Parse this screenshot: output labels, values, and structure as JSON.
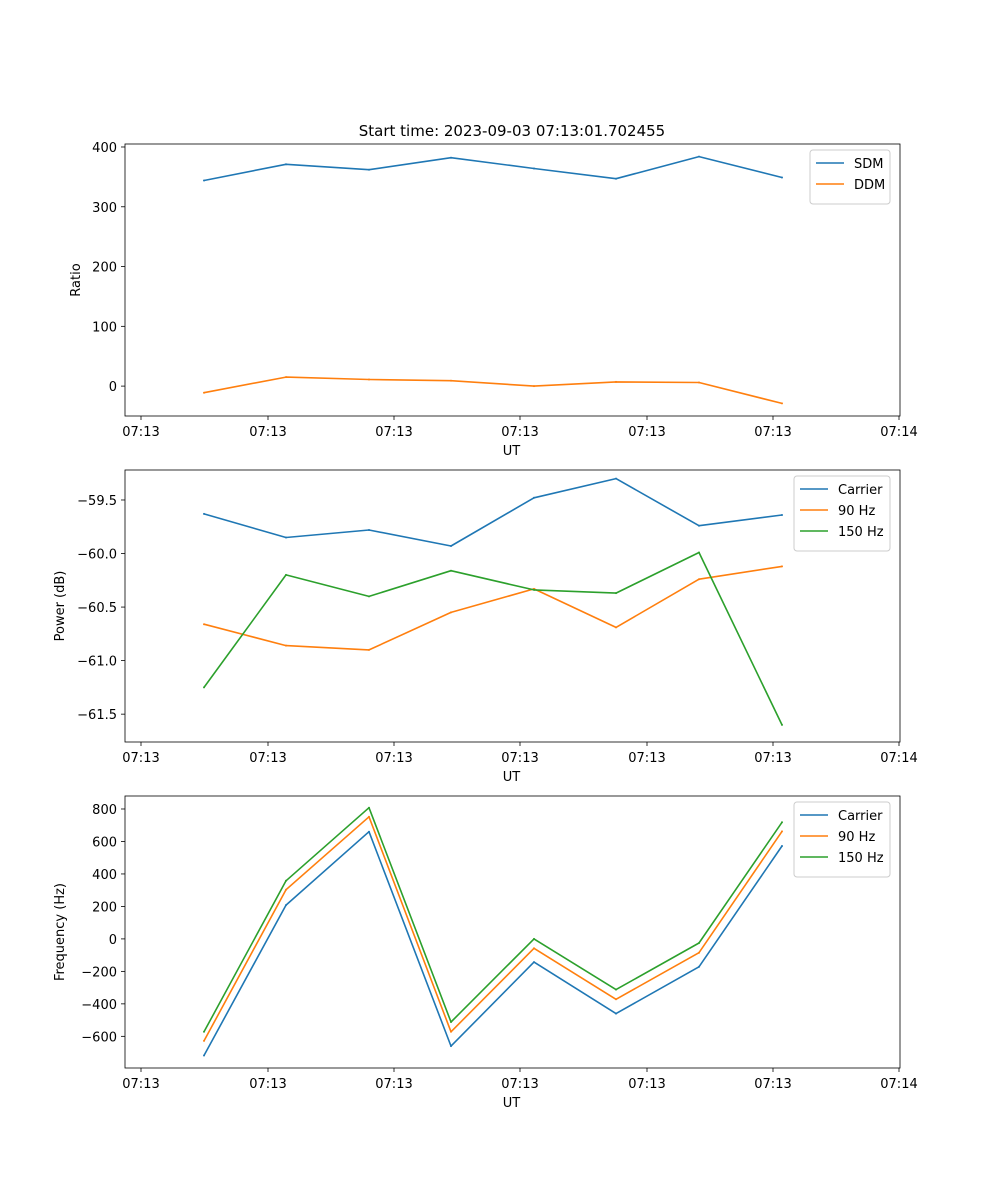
{
  "figure": {
    "title": "Start time: 2023-09-03 07:13:01.702455"
  },
  "chart_data": [
    {
      "type": "line",
      "xlabel": "UT",
      "ylabel": "Ratio",
      "x_tick_labels": [
        "07:13",
        "07:13",
        "07:13",
        "07:13",
        "07:13",
        "07:13",
        "07:14"
      ],
      "y_ticks": [
        0,
        100,
        200,
        300,
        400
      ],
      "y_tick_labels": [
        "0",
        "100",
        "200",
        "300",
        "400"
      ],
      "ylim": [
        -50,
        405
      ],
      "legend_position": "top-right",
      "series": [
        {
          "name": "SDM",
          "color": "#1f77b4",
          "values": [
            344,
            371,
            362,
            382,
            364,
            347,
            384,
            349
          ]
        },
        {
          "name": "DDM",
          "color": "#ff7f0e",
          "values": [
            -11,
            15,
            11,
            9,
            0,
            7,
            6,
            -29
          ]
        }
      ]
    },
    {
      "type": "line",
      "xlabel": "UT",
      "ylabel": "Power (dB)",
      "x_tick_labels": [
        "07:13",
        "07:13",
        "07:13",
        "07:13",
        "07:13",
        "07:13",
        "07:14"
      ],
      "y_ticks": [
        -61.5,
        -61.0,
        -60.5,
        -60.0,
        -59.5
      ],
      "y_tick_labels": [
        "−61.5",
        "−61.0",
        "−60.5",
        "−60.0",
        "−59.5"
      ],
      "ylim": [
        -61.76,
        -59.22
      ],
      "legend_position": "top-right",
      "series": [
        {
          "name": "Carrier",
          "color": "#1f77b4",
          "values": [
            -59.63,
            -59.85,
            -59.78,
            -59.93,
            -59.48,
            -59.3,
            -59.74,
            -59.64
          ]
        },
        {
          "name": "90 Hz",
          "color": "#ff7f0e",
          "values": [
            -60.66,
            -60.86,
            -60.9,
            -60.55,
            -60.33,
            -60.69,
            -60.24,
            -60.12
          ]
        },
        {
          "name": "150 Hz",
          "color": "#2ca02c",
          "values": [
            -61.25,
            -60.2,
            -60.4,
            -60.16,
            -60.34,
            -60.37,
            -59.99,
            -61.6
          ]
        }
      ]
    },
    {
      "type": "line",
      "xlabel": "UT",
      "ylabel": "Frequency (Hz)",
      "x_tick_labels": [
        "07:13",
        "07:13",
        "07:13",
        "07:13",
        "07:13",
        "07:13",
        "07:14"
      ],
      "y_ticks": [
        -600,
        -400,
        -200,
        0,
        200,
        400,
        600,
        800
      ],
      "y_tick_labels": [
        "−600",
        "−400",
        "−200",
        "0",
        "200",
        "400",
        "600",
        "800"
      ],
      "ylim": [
        -795,
        880
      ],
      "legend_position": "top-right",
      "series": [
        {
          "name": "Carrier",
          "color": "#1f77b4",
          "values": [
            -718,
            208,
            660,
            -660,
            -143,
            -460,
            -172,
            572
          ]
        },
        {
          "name": "90 Hz",
          "color": "#ff7f0e",
          "values": [
            -628,
            303,
            752,
            -572,
            -58,
            -372,
            -85,
            662
          ]
        },
        {
          "name": "150 Hz",
          "color": "#2ca02c",
          "values": [
            -572,
            358,
            808,
            -512,
            0,
            -312,
            -25,
            718
          ]
        }
      ]
    }
  ]
}
